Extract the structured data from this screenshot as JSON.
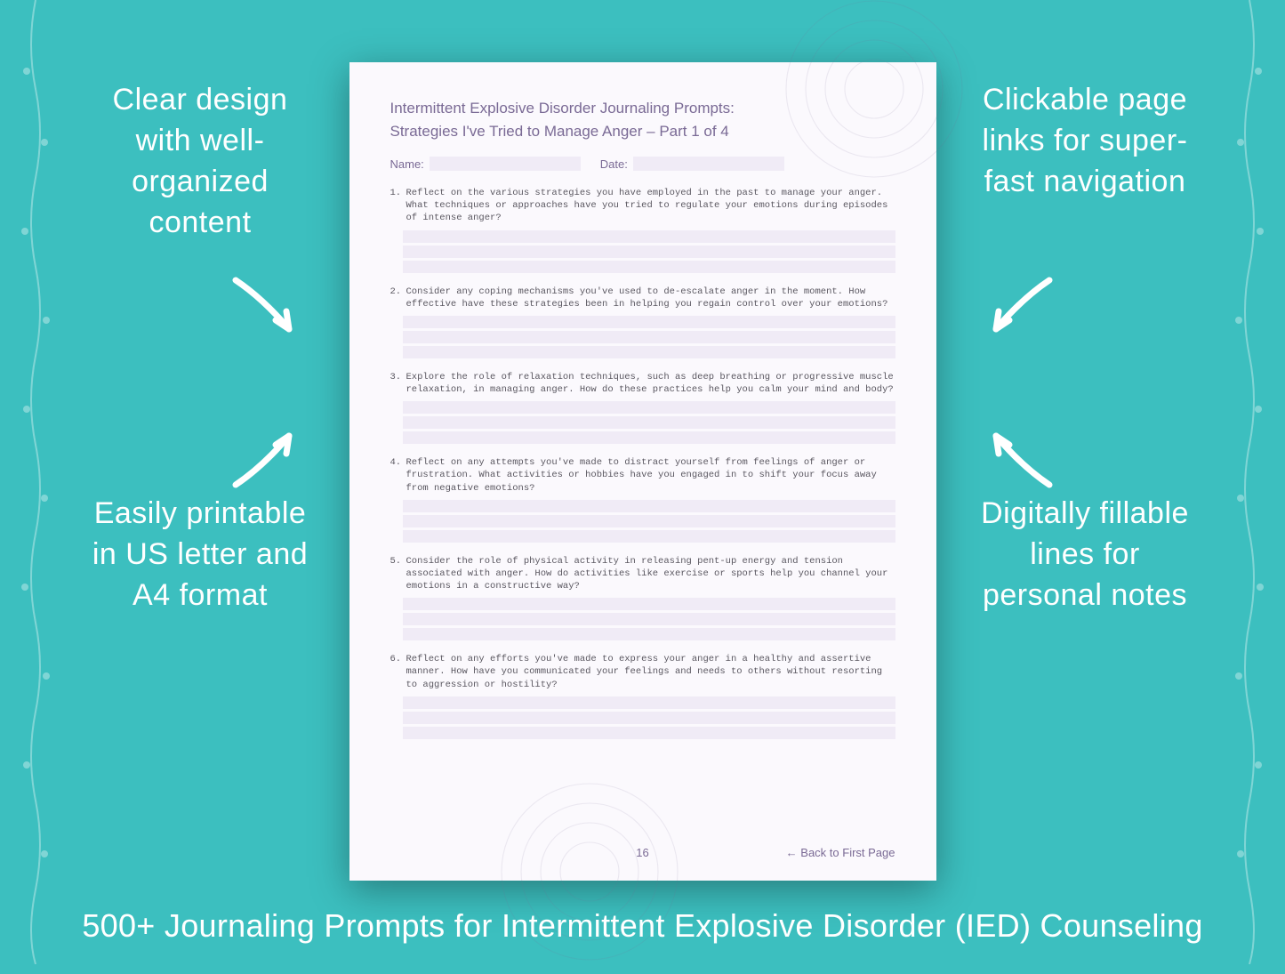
{
  "colors": {
    "background": "#3cbfbf",
    "page_bg": "#fbf9fd",
    "fill_line": "#f0ebf6",
    "heading": "#7a6a95",
    "body_text": "#5a5760",
    "callout_text": "#ffffff",
    "shadow": "rgba(0,0,0,0.35)"
  },
  "typography": {
    "callout_fontsize": 34,
    "banner_fontsize": 36,
    "page_title_fontsize": 17,
    "prompt_fontsize": 10.5,
    "prompt_font": "Courier New"
  },
  "callouts": {
    "top_left": "Clear design with well-organized content",
    "top_right": "Clickable page links for super-fast navigation",
    "bottom_left": "Easily printable in US letter and A4 format",
    "bottom_right": "Digitally fillable lines for personal notes"
  },
  "banner": "500+ Journaling Prompts for Intermittent Explosive Disorder (IED) Counseling",
  "page": {
    "title": "Intermittent Explosive Disorder Journaling Prompts:",
    "subtitle": "Strategies I've Tried to Manage Anger – Part 1 of 4",
    "name_label": "Name:",
    "date_label": "Date:",
    "page_number": "16",
    "back_link": "← Back to First Page",
    "fill_lines_per_prompt": 3,
    "prompts": [
      "Reflect on the various strategies you have employed in the past to manage your anger. What techniques or approaches have you tried to regulate your emotions during episodes of intense anger?",
      "Consider any coping mechanisms you've used to de-escalate anger in the moment. How effective have these strategies been in helping you regain control over your emotions?",
      "Explore the role of relaxation techniques, such as deep breathing or progressive muscle relaxation, in managing anger. How do these practices help you calm your mind and body?",
      "Reflect on any attempts you've made to distract yourself from feelings of anger or frustration. What activities or hobbies have you engaged in to shift your focus away from negative emotions?",
      "Consider the role of physical activity in releasing pent-up energy and tension associated with anger. How do activities like exercise or sports help you channel your emotions in a constructive way?",
      "Reflect on any efforts you've made to express your anger in a healthy and assertive manner. How have you communicated your feelings and needs to others without resorting to aggression or hostility?"
    ]
  }
}
